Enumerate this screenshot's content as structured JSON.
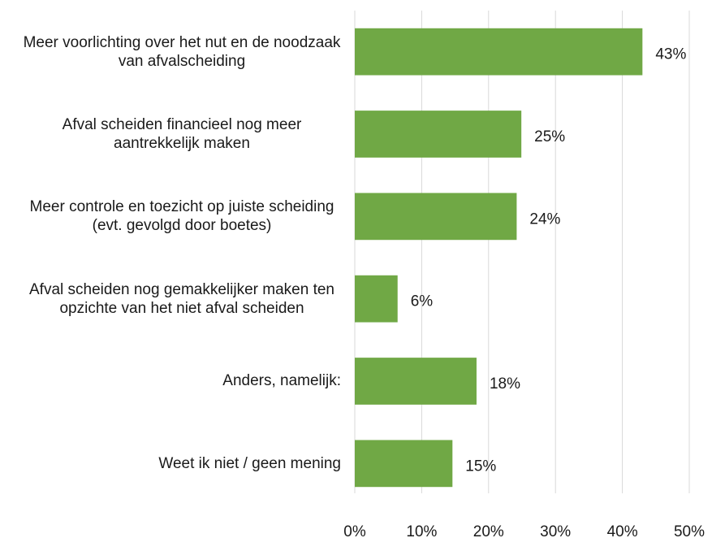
{
  "chart_data": {
    "type": "bar",
    "orientation": "horizontal",
    "categories": [
      "Meer voorlichting over het nut en de noodzaak van afvalscheiding",
      "Afval scheiden financieel nog meer aantrekkelijk maken",
      "Meer controle en toezicht op juiste scheiding (evt. gevolgd door boetes)",
      "Afval scheiden nog gemakkelijker maken ten opzichte van het niet afval scheiden",
      "Anders, namelijk:",
      "Weet ik niet / geen mening"
    ],
    "values": [
      43,
      24.9,
      24.2,
      6.4,
      18.2,
      14.6
    ],
    "value_labels": [
      "43%",
      "25%",
      "24%",
      "6%",
      "18%",
      "15%"
    ],
    "color": "#70a845",
    "xlim": [
      0,
      50
    ],
    "xticks": [
      {
        "value": 0,
        "label": "0%"
      },
      {
        "value": 10,
        "label": "10%"
      },
      {
        "value": 20,
        "label": "20%"
      },
      {
        "value": 30,
        "label": "30%"
      },
      {
        "value": 40,
        "label": "40%"
      },
      {
        "value": 50,
        "label": "50%"
      }
    ],
    "grid": true
  }
}
